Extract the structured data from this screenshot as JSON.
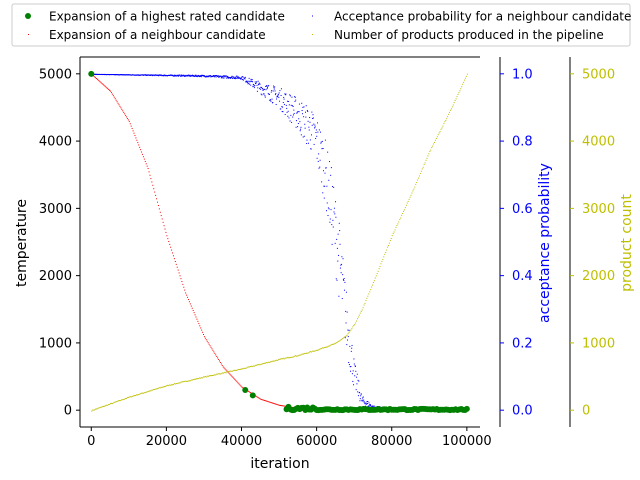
{
  "chart_data": {
    "type": "scatter",
    "xlabel": "iteration",
    "axes": {
      "x": {
        "range": [
          -3000,
          103500
        ],
        "ticks": [
          0,
          20000,
          40000,
          60000,
          80000,
          100000
        ]
      },
      "temperature": {
        "label": "temperature",
        "range": [
          -250,
          5250
        ],
        "ticks": [
          0,
          1000,
          2000,
          3000,
          4000,
          5000
        ],
        "color": "#000000"
      },
      "acceptance": {
        "label": "acceptance probability",
        "range": [
          -0.05,
          1.05
        ],
        "ticks": [
          0.0,
          0.2,
          0.4,
          0.6,
          0.8,
          1.0
        ],
        "color": "#0000ff"
      },
      "products": {
        "label": "product count",
        "range": [
          -250,
          5250
        ],
        "ticks": [
          0,
          1000,
          2000,
          3000,
          4000,
          5000
        ],
        "color": "#bfbf00"
      }
    },
    "legend": {
      "position": "top",
      "entries": [
        {
          "label": "Expansion of a highest rated candidate",
          "color": "#008000",
          "marker": "circle"
        },
        {
          "label": "Acceptance probability for a neighbour candidate",
          "color": "#0000ff",
          "marker": "pixel"
        },
        {
          "label": "Expansion of a neighbour candidate",
          "color": "#ff0000",
          "marker": "pixel"
        },
        {
          "label": "Number of products produced in the pipeline",
          "color": "#bfbf00",
          "marker": "pixel"
        }
      ]
    },
    "series": [
      {
        "name": "Expansion of a neighbour candidate",
        "axis": "temperature",
        "color": "#ff0000",
        "x": [
          0,
          5000,
          10000,
          15000,
          20000,
          25000,
          30000,
          35000,
          40000,
          45000,
          50000,
          55000,
          60000,
          70000,
          80000,
          100000
        ],
        "y": [
          5000,
          4750,
          4300,
          3600,
          2600,
          1750,
          1100,
          650,
          350,
          170,
          80,
          35,
          15,
          5,
          2,
          0
        ]
      },
      {
        "name": "Expansion of a highest rated candidate",
        "axis": "temperature",
        "color": "#008000",
        "points": [
          {
            "x": 0,
            "y": 5000
          },
          {
            "x": 41000,
            "y": 300
          },
          {
            "x": 43000,
            "y": 220
          }
        ],
        "band": {
          "x_from": 52000,
          "x_to": 100000,
          "y_min": 0,
          "y_max": 50
        }
      },
      {
        "name": "Acceptance probability for a neighbour candidate",
        "axis": "acceptance",
        "color": "#0000ff",
        "x": [
          0,
          30000,
          40000,
          45000,
          50000,
          55000,
          58000,
          60000,
          62000,
          64000,
          66000,
          68000,
          70000,
          72000,
          75000,
          80000,
          100000
        ],
        "y": [
          1.0,
          0.995,
          0.99,
          0.96,
          0.93,
          0.88,
          0.84,
          0.8,
          0.72,
          0.6,
          0.44,
          0.25,
          0.1,
          0.03,
          0.01,
          0.005,
          0.002
        ]
      },
      {
        "name": "Number of products produced in the pipeline",
        "axis": "products",
        "color": "#bfbf00",
        "x": [
          0,
          10000,
          20000,
          30000,
          40000,
          50000,
          55000,
          60000,
          65000,
          68000,
          70000,
          72000,
          75000,
          80000,
          85000,
          90000,
          95000,
          100000
        ],
        "y": [
          0,
          200,
          370,
          500,
          620,
          760,
          820,
          900,
          1000,
          1120,
          1280,
          1500,
          1900,
          2600,
          3200,
          3850,
          4400,
          5000
        ]
      }
    ]
  }
}
